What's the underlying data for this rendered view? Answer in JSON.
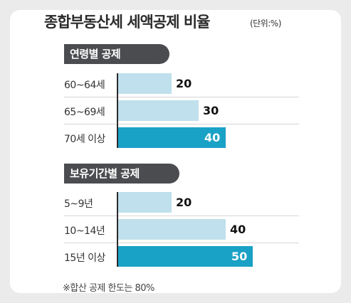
{
  "chart_data": {
    "type": "bar",
    "orientation": "horizontal",
    "title": "종합부동산세 세액공제 비율",
    "unit": "(단위:%)",
    "groups": [
      {
        "name": "연령별 공제",
        "categories": [
          "60~64세",
          "65~69세",
          "70세 이상"
        ],
        "values": [
          20,
          30,
          40
        ]
      },
      {
        "name": "보유기간별 공제",
        "categories": [
          "5~9년",
          "10~14년",
          "15년 이상"
        ],
        "values": [
          20,
          40,
          50
        ]
      }
    ],
    "footnote": "※합산 공제 한도는 80%",
    "colors": {
      "light": "#bfe0ec",
      "highlight": "#1aa1c6",
      "section": "#4a4c4f"
    }
  }
}
